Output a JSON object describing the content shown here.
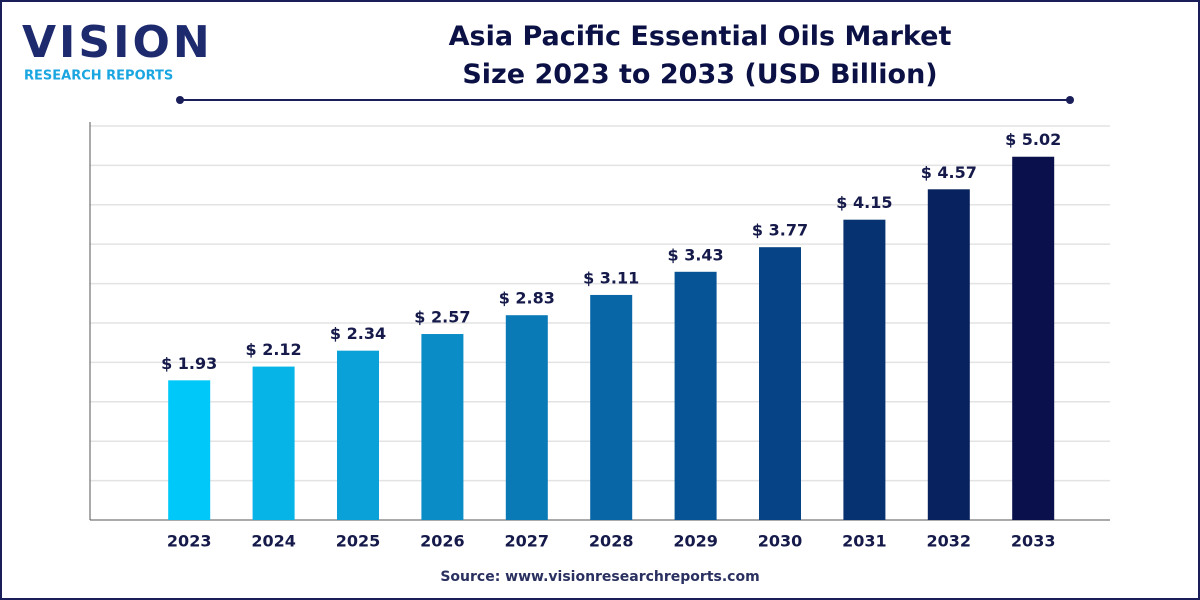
{
  "logo": {
    "name": "VISION",
    "tagline": "RESEARCH REPORTS"
  },
  "chart_data": {
    "type": "bar",
    "title": "Asia Pacific Essential Oils Market Size 2023 to 2033 (USD Billion)",
    "categories": [
      "2023",
      "2024",
      "2025",
      "2026",
      "2027",
      "2028",
      "2029",
      "2030",
      "2031",
      "2032",
      "2033"
    ],
    "values": [
      1.93,
      2.12,
      2.34,
      2.57,
      2.83,
      3.11,
      3.43,
      3.77,
      4.15,
      4.57,
      5.02
    ],
    "value_labels": [
      "$ 1.93",
      "$ 2.12",
      "$ 2.34",
      "$ 2.57",
      "$ 2.83",
      "$ 3.11",
      "$ 3.43",
      "$ 3.77",
      "$ 4.15",
      "$ 4.57",
      "$ 5.02"
    ],
    "colors": [
      "#00c8f8",
      "#06b4e8",
      "#0aa0d8",
      "#0a8cc6",
      "#0a7ab6",
      "#0866a6",
      "#065496",
      "#054386",
      "#063272",
      "#07225e",
      "#0a104c"
    ],
    "ylim": [
      0,
      5.5
    ],
    "grid": true,
    "source": "Source: www.visionresearchreports.com"
  }
}
